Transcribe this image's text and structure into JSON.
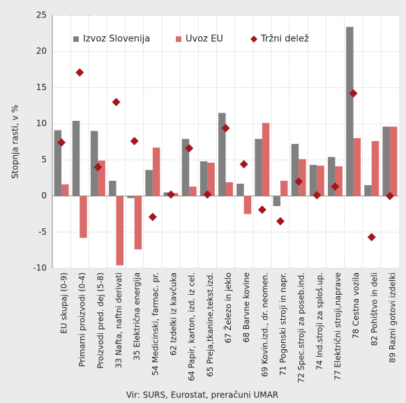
{
  "chart_data": {
    "type": "bar",
    "y_label": "Stopnja rasti, v %",
    "source": "Vir: SURS, Eurostat, preračuni UMAR",
    "categories": [
      "EU skupaj (0-9)",
      "Primarni proizvodi (0-4)",
      "Proizvodi pred. dej (5-8)",
      "33 Nafta, naftni derivati",
      "35 Električna energija",
      "54 Medicinski, farmac. pr.",
      "62 Izdelki iz kavčuka",
      "64 Papir, karton, izd. iz cel.",
      "65 Preja,tkanine,tekst.izd.",
      "67 Železo in jeklo",
      "68 Barvne kovine",
      "69 Kovin.izd., dr. neomen.",
      "71 Pogonski stroji in napr.",
      "72 Spec.stroji za poseb.ind.",
      "74 Ind.stroji za sploš.up.",
      "77 Električni stroji,naprave",
      "78 Cestna vozila",
      "82 Pohištvo in deli",
      "89 Razni gotovi izdelki"
    ],
    "series": [
      {
        "name": "Izvoz Slovenija",
        "color": "#808080",
        "mark": "bar",
        "values": [
          9.1,
          10.4,
          9.0,
          2.1,
          -0.3,
          3.6,
          0.5,
          7.9,
          4.8,
          11.5,
          1.7,
          7.9,
          -1.4,
          7.2,
          4.3,
          5.4,
          23.4,
          1.5,
          9.6
        ]
      },
      {
        "name": "Uvoz EU",
        "color": "#d96b6b",
        "mark": "bar",
        "values": [
          1.6,
          -5.8,
          4.9,
          -9.6,
          -7.4,
          6.7,
          0.4,
          1.3,
          4.6,
          1.9,
          -2.5,
          10.1,
          2.1,
          5.1,
          4.2,
          4.1,
          8.0,
          7.6,
          9.6
        ]
      },
      {
        "name": "Tržni delež",
        "color": "#a3161b",
        "mark": "diamond",
        "values": [
          7.4,
          17.1,
          4.0,
          13.0,
          7.6,
          -2.9,
          0.2,
          6.6,
          0.2,
          9.4,
          4.4,
          -1.9,
          -3.5,
          2.0,
          0.1,
          1.3,
          14.2,
          -5.7,
          0.0
        ]
      }
    ],
    "ylim": [
      -10,
      25
    ],
    "yticks": [
      -10,
      -5,
      0,
      5,
      10,
      15,
      20,
      25
    ],
    "grid": true
  }
}
